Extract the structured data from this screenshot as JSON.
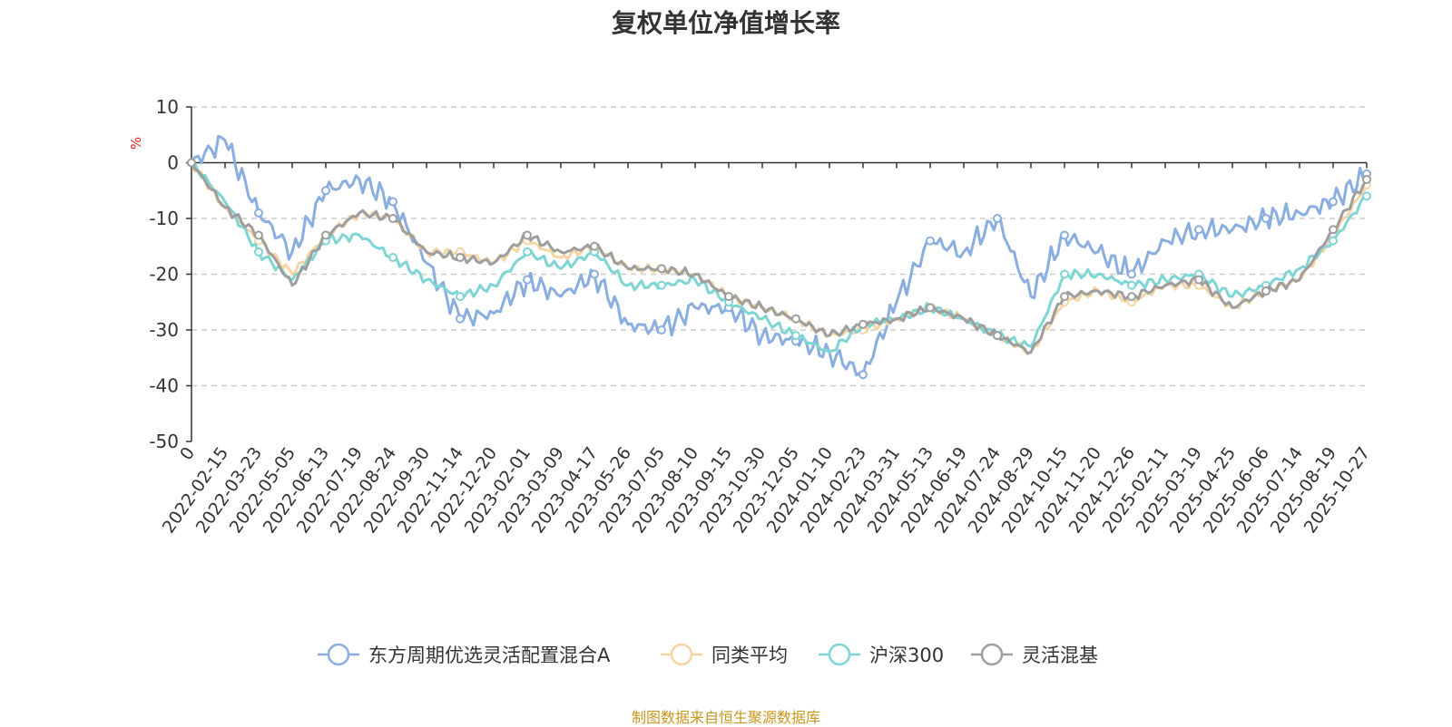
{
  "chart_data": {
    "type": "line",
    "title": "复权单位净值增长率",
    "ylabel": "%",
    "ylim": [
      -50,
      10
    ],
    "yticks": [
      10,
      0,
      -10,
      -20,
      -30,
      -40,
      -50
    ],
    "grid": true,
    "legend_position": "bottom-center",
    "x": [
      "0",
      "2022-02-15",
      "2022-03-23",
      "2022-05-05",
      "2022-06-13",
      "2022-07-19",
      "2022-08-24",
      "2022-09-30",
      "2022-11-14",
      "2022-12-20",
      "2023-02-01",
      "2023-03-09",
      "2023-04-17",
      "2023-05-26",
      "2023-07-05",
      "2023-08-10",
      "2023-09-15",
      "2023-10-30",
      "2023-12-05",
      "2024-01-10",
      "2024-02-23",
      "2024-03-31",
      "2024-05-13",
      "2024-06-19",
      "2024-07-24",
      "2024-08-29",
      "2024-10-15",
      "2024-11-20",
      "2024-12-26",
      "2025-02-11",
      "2025-03-19",
      "2025-04-25",
      "2025-06-06",
      "2025-07-14",
      "2025-08-19",
      "2025-10-27"
    ],
    "series": [
      {
        "name": "东方周期优选灵活配置混合A",
        "color": "#8aaee0",
        "values": [
          0,
          4,
          -9,
          -16,
          -5,
          -3,
          -7,
          -18,
          -28,
          -27,
          -21,
          -24,
          -20,
          -29,
          -30,
          -26,
          -26,
          -31,
          -32,
          -34,
          -38,
          -25,
          -14,
          -16,
          -10,
          -24,
          -13,
          -16,
          -20,
          -14,
          -12,
          -12,
          -10,
          -9,
          -7,
          -2
        ]
      },
      {
        "name": "同类平均",
        "color": "#f5d5a3",
        "values": [
          0,
          -8,
          -14,
          -20,
          -13,
          -9,
          -10,
          -16,
          -16,
          -18,
          -14,
          -17,
          -15,
          -19,
          -19,
          -20,
          -24,
          -26,
          -28,
          -31,
          -30,
          -28,
          -26,
          -28,
          -31,
          -34,
          -25,
          -23,
          -25,
          -22,
          -22,
          -26,
          -23,
          -21,
          -13,
          -4
        ]
      },
      {
        "name": "沪深300",
        "color": "#7fd4d4",
        "values": [
          0,
          -7,
          -16,
          -21,
          -14,
          -13,
          -17,
          -21,
          -24,
          -22,
          -16,
          -19,
          -16,
          -22,
          -22,
          -21,
          -25,
          -28,
          -31,
          -34,
          -29,
          -28,
          -26,
          -28,
          -31,
          -33,
          -20,
          -20,
          -22,
          -21,
          -20,
          -24,
          -22,
          -19,
          -14,
          -6
        ]
      },
      {
        "name": "灵活混基",
        "color": "#9e9e9e",
        "values": [
          0,
          -8,
          -13,
          -22,
          -13,
          -9,
          -10,
          -16,
          -17,
          -18,
          -13,
          -16,
          -15,
          -19,
          -19,
          -20,
          -24,
          -26,
          -28,
          -31,
          -29,
          -28,
          -26,
          -28,
          -31,
          -34,
          -24,
          -23,
          -24,
          -22,
          -21,
          -26,
          -23,
          -21,
          -12,
          -3
        ]
      }
    ]
  },
  "source_text": "制图数据来自恒生聚源数据库"
}
